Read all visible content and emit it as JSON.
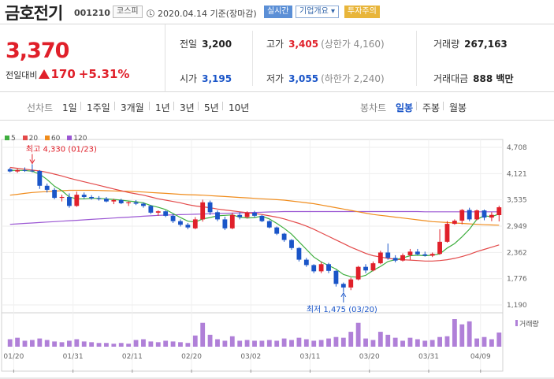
{
  "header": {
    "name": "금호전기",
    "code": "001210",
    "market": "코스피",
    "date": "2020.04.14 기준(장마감)",
    "realtime": "실시간",
    "corp_info": "기업개요",
    "warning": "투자주의"
  },
  "summary": {
    "price": "3,370",
    "change_label": "전일대비",
    "change_amount": "170",
    "change_pct": "+5.31%",
    "prev_close": {
      "label": "전일",
      "value": "3,200"
    },
    "open": {
      "label": "시가",
      "value": "3,195"
    },
    "high": {
      "label": "고가",
      "value": "3,405",
      "limit": "(상한가 4,160)"
    },
    "low": {
      "label": "저가",
      "value": "3,055",
      "limit": "(하한가 2,240)"
    },
    "volume": {
      "label": "거래량",
      "value": "267,163"
    },
    "amount": {
      "label": "거래대금",
      "value": "888 백만"
    }
  },
  "toolbar": {
    "line_chart_label": "선차트",
    "ranges": [
      "1일",
      "1주일",
      "3개월",
      "1년",
      "3년",
      "5년",
      "10년"
    ],
    "candle_label": "봉차트",
    "candle_periods": [
      "일봉",
      "주봉",
      "월봉"
    ],
    "active_period": "일봉"
  },
  "colors": {
    "up": "#e0202a",
    "down": "#1a55c8",
    "ma5": "#3fae3f",
    "ma20": "#e34a4a",
    "ma60": "#f08c1c",
    "ma120": "#9b57d3",
    "volume": "#b080d8"
  },
  "chart_data": {
    "type": "candlestick",
    "legend": [
      {
        "name": "5",
        "color": "#3fae3f"
      },
      {
        "name": "20",
        "color": "#e34a4a"
      },
      {
        "name": "60",
        "color": "#f08c1c"
      },
      {
        "name": "120",
        "color": "#9b57d3"
      }
    ],
    "y_ticks": [
      "4,708",
      "4,121",
      "3,535",
      "2,949",
      "2,362",
      "1,776",
      "1,190"
    ],
    "ylim": [
      1190,
      4708
    ],
    "x_ticks": [
      "01/20",
      "01/31",
      "02/11",
      "02/20",
      "03/02",
      "03/11",
      "03/20",
      "03/31",
      "04/09"
    ],
    "annotations": {
      "high": "최고 4,330 (01/23)",
      "low": "최저 1,475 (03/20)"
    },
    "volume_label": "거래량",
    "candles": [
      {
        "o": 4220,
        "h": 4250,
        "l": 4150,
        "c": 4170
      },
      {
        "o": 4170,
        "h": 4230,
        "l": 4140,
        "c": 4200
      },
      {
        "o": 4200,
        "h": 4260,
        "l": 4160,
        "c": 4190
      },
      {
        "o": 4190,
        "h": 4330,
        "l": 4150,
        "c": 4180
      },
      {
        "o": 4180,
        "h": 4200,
        "l": 3780,
        "c": 3850
      },
      {
        "o": 3850,
        "h": 3900,
        "l": 3700,
        "c": 3760
      },
      {
        "o": 3760,
        "h": 3800,
        "l": 3550,
        "c": 3580
      },
      {
        "o": 3580,
        "h": 3650,
        "l": 3500,
        "c": 3600
      },
      {
        "o": 3600,
        "h": 3680,
        "l": 3360,
        "c": 3400
      },
      {
        "o": 3400,
        "h": 3720,
        "l": 3380,
        "c": 3650
      },
      {
        "o": 3650,
        "h": 3700,
        "l": 3560,
        "c": 3600
      },
      {
        "o": 3600,
        "h": 3640,
        "l": 3540,
        "c": 3570
      },
      {
        "o": 3570,
        "h": 3620,
        "l": 3520,
        "c": 3560
      },
      {
        "o": 3560,
        "h": 3600,
        "l": 3480,
        "c": 3500
      },
      {
        "o": 3500,
        "h": 3560,
        "l": 3440,
        "c": 3530
      },
      {
        "o": 3530,
        "h": 3560,
        "l": 3440,
        "c": 3460
      },
      {
        "o": 3460,
        "h": 3500,
        "l": 3400,
        "c": 3480
      },
      {
        "o": 3480,
        "h": 3530,
        "l": 3420,
        "c": 3450
      },
      {
        "o": 3450,
        "h": 3480,
        "l": 3360,
        "c": 3400
      },
      {
        "o": 3400,
        "h": 3420,
        "l": 3220,
        "c": 3250
      },
      {
        "o": 3250,
        "h": 3300,
        "l": 3180,
        "c": 3280
      },
      {
        "o": 3280,
        "h": 3300,
        "l": 3150,
        "c": 3180
      },
      {
        "o": 3180,
        "h": 3220,
        "l": 3020,
        "c": 3060
      },
      {
        "o": 3060,
        "h": 3100,
        "l": 2940,
        "c": 2980
      },
      {
        "o": 2980,
        "h": 3020,
        "l": 2880,
        "c": 2920
      },
      {
        "o": 2900,
        "h": 3150,
        "l": 2880,
        "c": 3100
      },
      {
        "o": 3100,
        "h": 3540,
        "l": 3050,
        "c": 3480
      },
      {
        "o": 3480,
        "h": 3520,
        "l": 3200,
        "c": 3260
      },
      {
        "o": 3260,
        "h": 3300,
        "l": 3060,
        "c": 3100
      },
      {
        "o": 3100,
        "h": 3160,
        "l": 2860,
        "c": 2900
      },
      {
        "o": 2900,
        "h": 3250,
        "l": 2880,
        "c": 3200
      },
      {
        "o": 3200,
        "h": 3260,
        "l": 3100,
        "c": 3150
      },
      {
        "o": 3150,
        "h": 3280,
        "l": 3120,
        "c": 3250
      },
      {
        "o": 3250,
        "h": 3290,
        "l": 3140,
        "c": 3180
      },
      {
        "o": 3180,
        "h": 3200,
        "l": 3040,
        "c": 3060
      },
      {
        "o": 3060,
        "h": 3080,
        "l": 2900,
        "c": 2920
      },
      {
        "o": 2920,
        "h": 2940,
        "l": 2750,
        "c": 2780
      },
      {
        "o": 2780,
        "h": 2800,
        "l": 2600,
        "c": 2640
      },
      {
        "o": 2640,
        "h": 2660,
        "l": 2420,
        "c": 2460
      },
      {
        "o": 2460,
        "h": 2480,
        "l": 2160,
        "c": 2200
      },
      {
        "o": 2200,
        "h": 2240,
        "l": 2040,
        "c": 2080
      },
      {
        "o": 2080,
        "h": 2100,
        "l": 1900,
        "c": 1940
      },
      {
        "o": 1940,
        "h": 2150,
        "l": 1900,
        "c": 2100
      },
      {
        "o": 2100,
        "h": 2130,
        "l": 1900,
        "c": 1950
      },
      {
        "o": 1950,
        "h": 1970,
        "l": 1600,
        "c": 1660
      },
      {
        "o": 1660,
        "h": 1690,
        "l": 1475,
        "c": 1580
      },
      {
        "o": 1580,
        "h": 1800,
        "l": 1520,
        "c": 1760
      },
      {
        "o": 1760,
        "h": 2060,
        "l": 1740,
        "c": 2040
      },
      {
        "o": 2040,
        "h": 2100,
        "l": 1900,
        "c": 1960
      },
      {
        "o": 1960,
        "h": 2160,
        "l": 1940,
        "c": 2120
      },
      {
        "o": 2120,
        "h": 2400,
        "l": 2100,
        "c": 2360
      },
      {
        "o": 2360,
        "h": 2560,
        "l": 2200,
        "c": 2240
      },
      {
        "o": 2240,
        "h": 2300,
        "l": 2140,
        "c": 2180
      },
      {
        "o": 2180,
        "h": 2340,
        "l": 2160,
        "c": 2300
      },
      {
        "o": 2300,
        "h": 2440,
        "l": 2200,
        "c": 2380
      },
      {
        "o": 2380,
        "h": 2440,
        "l": 2300,
        "c": 2320
      },
      {
        "o": 2320,
        "h": 2380,
        "l": 2270,
        "c": 2290
      },
      {
        "o": 2290,
        "h": 2360,
        "l": 2260,
        "c": 2330
      },
      {
        "o": 2330,
        "h": 2880,
        "l": 2310,
        "c": 2600
      },
      {
        "o": 2600,
        "h": 3060,
        "l": 2580,
        "c": 3000
      },
      {
        "o": 3000,
        "h": 3100,
        "l": 2980,
        "c": 3070
      },
      {
        "o": 3070,
        "h": 3330,
        "l": 2990,
        "c": 3310
      },
      {
        "o": 3310,
        "h": 3360,
        "l": 3060,
        "c": 3100
      },
      {
        "o": 3100,
        "h": 3320,
        "l": 3080,
        "c": 3300
      },
      {
        "o": 3300,
        "h": 3320,
        "l": 3080,
        "c": 3140
      },
      {
        "o": 3140,
        "h": 3260,
        "l": 3060,
        "c": 3200
      },
      {
        "o": 3195,
        "h": 3405,
        "l": 3055,
        "c": 3370
      }
    ],
    "volumes": [
      10,
      12,
      8,
      9,
      11,
      9,
      7,
      6,
      8,
      10,
      7,
      6,
      5,
      5,
      4,
      5,
      4,
      9,
      10,
      7,
      6,
      8,
      7,
      6,
      5,
      15,
      32,
      16,
      10,
      8,
      14,
      8,
      9,
      8,
      8,
      9,
      8,
      11,
      9,
      12,
      10,
      8,
      9,
      11,
      13,
      12,
      20,
      32,
      11,
      9,
      20,
      16,
      12,
      8,
      12,
      10,
      8,
      9,
      13,
      14,
      37,
      30,
      34,
      11,
      13,
      10,
      19
    ],
    "ma": {
      "ma5": [
        4190,
        4195,
        4190,
        4175,
        4110,
        3990,
        3840,
        3740,
        3600,
        3560,
        3560,
        3570,
        3570,
        3555,
        3545,
        3530,
        3510,
        3495,
        3470,
        3410,
        3370,
        3320,
        3230,
        3140,
        3060,
        3040,
        3110,
        3140,
        3180,
        3190,
        3200,
        3150,
        3130,
        3140,
        3170,
        3110,
        3010,
        2900,
        2770,
        2600,
        2430,
        2260,
        2150,
        2070,
        1990,
        1870,
        1820,
        1810,
        1850,
        1960,
        2050,
        2160,
        2200,
        2240,
        2290,
        2300,
        2290,
        2300,
        2330,
        2460,
        2560,
        2710,
        2880,
        3100,
        3180,
        3160,
        3220
      ],
      "ma20": [
        4260,
        4240,
        4220,
        4200,
        4180,
        4150,
        4110,
        4070,
        4020,
        3980,
        3940,
        3900,
        3860,
        3820,
        3780,
        3740,
        3700,
        3670,
        3640,
        3600,
        3560,
        3530,
        3500,
        3470,
        3430,
        3400,
        3380,
        3360,
        3330,
        3310,
        3290,
        3270,
        3250,
        3230,
        3210,
        3180,
        3150,
        3110,
        3060,
        3010,
        2950,
        2880,
        2800,
        2720,
        2640,
        2560,
        2480,
        2410,
        2340,
        2290,
        2260,
        2230,
        2210,
        2200,
        2190,
        2180,
        2170,
        2170,
        2180,
        2200,
        2230,
        2270,
        2320,
        2380,
        2430,
        2480,
        2530
      ],
      "ma60": [
        3640,
        3660,
        3680,
        3700,
        3710,
        3720,
        3730,
        3740,
        3750,
        3750,
        3750,
        3750,
        3745,
        3740,
        3735,
        3730,
        3725,
        3720,
        3710,
        3700,
        3690,
        3680,
        3670,
        3660,
        3650,
        3645,
        3640,
        3630,
        3620,
        3610,
        3600,
        3590,
        3580,
        3570,
        3560,
        3550,
        3540,
        3530,
        3510,
        3490,
        3470,
        3450,
        3420,
        3390,
        3360,
        3330,
        3300,
        3270,
        3240,
        3210,
        3190,
        3170,
        3150,
        3130,
        3110,
        3090,
        3070,
        3050,
        3040,
        3030,
        3020,
        3010,
        3000,
        2990,
        2980,
        2975,
        2970
      ],
      "ma120": [
        2990,
        3000,
        3010,
        3020,
        3030,
        3040,
        3050,
        3060,
        3070,
        3080,
        3090,
        3100,
        3110,
        3120,
        3130,
        3140,
        3150,
        3160,
        3170,
        3180,
        3190,
        3195,
        3200,
        3205,
        3210,
        3215,
        3220,
        3225,
        3230,
        3235,
        3240,
        3245,
        3250,
        3255,
        3260,
        3265,
        3270,
        3275,
        3275,
        3275,
        3275,
        3275,
        3275,
        3275,
        3275,
        3275,
        3275,
        3275,
        3275,
        3275,
        3275,
        3275,
        3275,
        3275,
        3275,
        3275,
        3270,
        3270,
        3270,
        3270,
        3270,
        3270,
        3270,
        3270,
        3270,
        3270,
        3270
      ]
    }
  }
}
